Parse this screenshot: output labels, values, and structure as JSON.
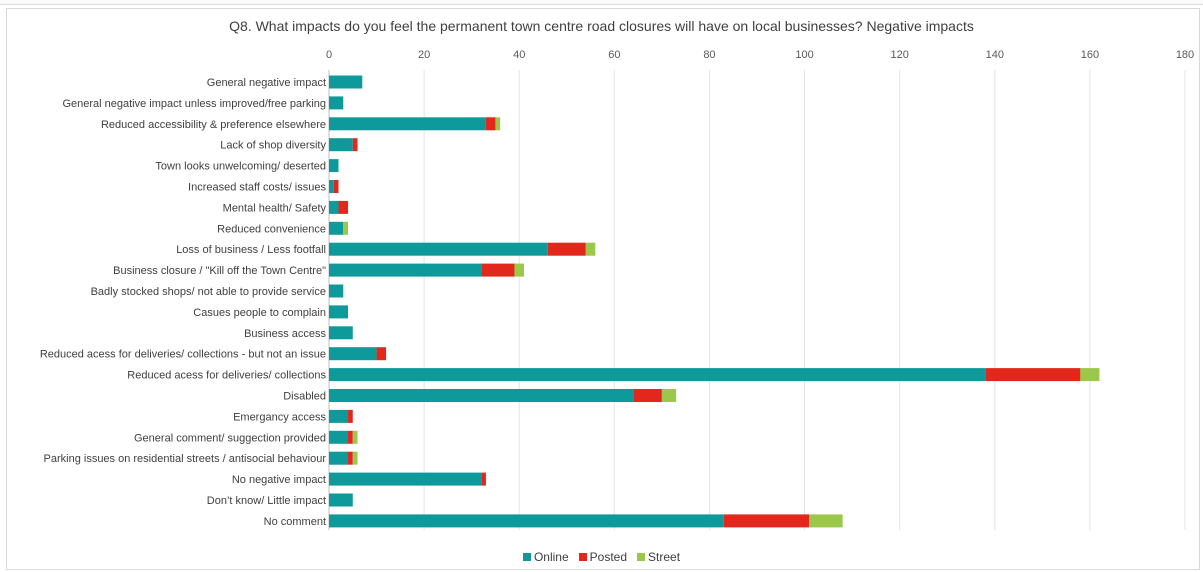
{
  "chart_data": {
    "type": "bar",
    "orientation": "horizontal",
    "stacked": true,
    "title": "Q8. What impacts do you feel the permanent town centre road closures will have on local businesses? Negative impacts",
    "xlim": [
      0,
      180
    ],
    "x_ticks": [
      "0",
      "20",
      "40",
      "60",
      "80",
      "100",
      "120",
      "140",
      "160",
      "180"
    ],
    "x_axis_position": "top",
    "grid": true,
    "legend_position": "bottom",
    "categories": [
      "General negative impact",
      "General negative impact unless improved/free parking",
      "Reduced accessibility & preference elsewhere",
      "Lack of shop diversity",
      "Town looks unwelcoming/ deserted",
      "Increased staff costs/ issues",
      "Mental health/ Safety",
      "Reduced convenience",
      "Loss of business / Less footfall",
      "Business closure / \"Kill off the Town Centre\"",
      "Badly stocked shops/ not able to provide service",
      "Casues people to complain",
      "Business access",
      "Reduced acess for deliveries/ collections - but not an issue",
      "Reduced acess for deliveries/ collections",
      "Disabled",
      "Emergancy access",
      "General comment/ suggection provided",
      "Parking issues on residential streets / antisocial behaviour",
      "No negative impact",
      "Don’t know/ Little impact",
      "No comment"
    ],
    "series": [
      {
        "name": "Online",
        "color": "#0e9a9a",
        "values": [
          7,
          3,
          33,
          5,
          2,
          1,
          2,
          3,
          46,
          32,
          3,
          4,
          5,
          10,
          138,
          64,
          4,
          4,
          4,
          32,
          5,
          83
        ]
      },
      {
        "name": "Posted",
        "color": "#e2281c",
        "values": [
          0,
          0,
          2,
          1,
          0,
          1,
          2,
          0,
          8,
          7,
          0,
          0,
          0,
          2,
          20,
          6,
          1,
          1,
          1,
          1,
          0,
          18
        ]
      },
      {
        "name": "Street",
        "color": "#9bc84a",
        "values": [
          0,
          0,
          1,
          0,
          0,
          0,
          0,
          1,
          2,
          2,
          0,
          0,
          0,
          0,
          4,
          3,
          0,
          1,
          1,
          0,
          0,
          7
        ]
      }
    ]
  }
}
